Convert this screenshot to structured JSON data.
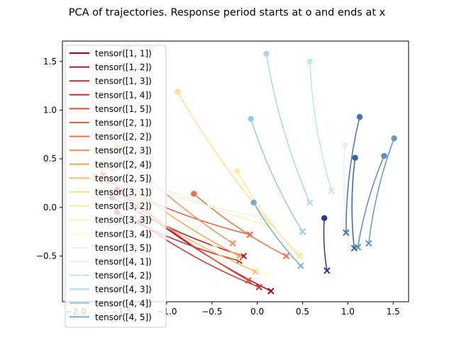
{
  "chart_data": {
    "type": "line",
    "title": "PCA of trajectories. Response period starts at o and ends at x",
    "xlabel": "",
    "ylabel": "",
    "xlim": [
      -2.15,
      1.67
    ],
    "ylim": [
      -0.97,
      1.71
    ],
    "xticks": [
      -2.0,
      -1.5,
      -1.0,
      -0.5,
      0.0,
      0.5,
      1.0,
      1.5
    ],
    "xtick_labels": [
      "−2.0",
      "−1.5",
      "−1.0",
      "−0.5",
      "0.0",
      "0.5",
      "1.0",
      "1.5"
    ],
    "yticks": [
      -0.5,
      0.0,
      0.5,
      1.0,
      1.5
    ],
    "ytick_labels": [
      "−0.5",
      "0.0",
      "0.5",
      "1.0",
      "1.5"
    ],
    "grid": false,
    "legend_position": "upper-left",
    "start_marker": "o",
    "end_marker": "x",
    "series": [
      {
        "name": "tensor([1, 1])",
        "color": "#a50026",
        "start": [
          -1.55,
          0.18
        ],
        "end": [
          0.15,
          -0.86
        ]
      },
      {
        "name": "tensor([1, 2])",
        "color": "#b8102a",
        "start": [
          -1.6,
          0.1
        ],
        "end": [
          -0.15,
          -0.5
        ]
      },
      {
        "name": "tensor([1, 3])",
        "color": "#c9262c",
        "start": [
          -1.55,
          -0.05
        ],
        "end": [
          -0.2,
          -0.55
        ]
      },
      {
        "name": "tensor([1, 4])",
        "color": "#d73027",
        "start": [
          -1.3,
          -0.15
        ],
        "end": [
          0.02,
          -0.82
        ]
      },
      {
        "name": "tensor([1, 5])",
        "color": "#e34a33",
        "start": [
          -1.7,
          0.35
        ],
        "end": [
          -0.1,
          -0.75
        ]
      },
      {
        "name": "tensor([2, 1])",
        "color": "#ea5f3c",
        "start": [
          -1.65,
          0.27
        ],
        "end": [
          -0.08,
          -0.28
        ]
      },
      {
        "name": "tensor([2, 2])",
        "color": "#f46d43",
        "start": [
          -0.7,
          0.14
        ],
        "end": [
          0.32,
          -0.5
        ]
      },
      {
        "name": "tensor([2, 3])",
        "color": "#f88d52",
        "start": [
          -1.55,
          0.62
        ],
        "end": [
          -0.27,
          -0.37
        ]
      },
      {
        "name": "tensor([2, 4])",
        "color": "#fba35e",
        "start": [
          -1.7,
          0.45
        ],
        "end": [
          -0.2,
          -0.5
        ]
      },
      {
        "name": "tensor([2, 5])",
        "color": "#fdb96b",
        "start": [
          -1.8,
          0.3
        ],
        "end": [
          -0.02,
          -0.66
        ]
      },
      {
        "name": "tensor([3, 1])",
        "color": "#fee08b",
        "start": [
          -0.88,
          1.19
        ],
        "end": [
          0.47,
          -0.5
        ]
      },
      {
        "name": "tensor([3, 2])",
        "color": "#fee999",
        "start": [
          -0.22,
          0.37
        ],
        "end": [
          0.46,
          -0.5
        ]
      },
      {
        "name": "tensor([3, 3])",
        "color": "#fef3b3",
        "start": [
          -1.8,
          0.55
        ],
        "end": [
          0.1,
          -0.18
        ]
      },
      {
        "name": "tensor([3, 4])",
        "color": "#fffbcb",
        "start": [
          -2.0,
          0.62
        ],
        "end": [
          0.1,
          -0.69
        ]
      },
      {
        "name": "tensor([3, 5])",
        "color": "#eaf6e3",
        "start": [
          -1.9,
          0.45
        ],
        "end": [
          0.05,
          -0.1
        ]
      },
      {
        "name": "tensor([4, 1])",
        "color": "#e0f3f8",
        "start": [
          0.97,
          0.64
        ],
        "end": [
          1.02,
          -0.42
        ]
      },
      {
        "name": "tensor([4, 2])",
        "color": "#c0e6ef",
        "start": [
          0.58,
          1.5
        ],
        "end": [
          0.82,
          0.17
        ]
      },
      {
        "name": "tensor([4, 3])",
        "color": "#abd9e9",
        "start": [
          0.1,
          1.58
        ],
        "end": [
          0.58,
          0.05
        ]
      },
      {
        "name": "tensor([4, 4])",
        "color": "#94cbe1",
        "start": [
          -0.07,
          0.91
        ],
        "end": [
          0.5,
          -0.25
        ]
      },
      {
        "name": "tensor([4, 5])",
        "color": "#74add1",
        "start": [
          -0.04,
          0.05
        ],
        "end": [
          0.48,
          -0.6
        ]
      },
      {
        "name": "",
        "color": "#6399c6",
        "start": [
          1.51,
          0.71
        ],
        "end": [
          1.23,
          -0.37
        ]
      },
      {
        "name": "",
        "color": "#5b8fc1",
        "start": [
          1.4,
          0.53
        ],
        "end": [
          1.11,
          -0.41
        ]
      },
      {
        "name": "",
        "color": "#4575b4",
        "start": [
          1.13,
          0.93
        ],
        "end": [
          0.98,
          -0.26
        ]
      },
      {
        "name": "",
        "color": "#3b62a6",
        "start": [
          1.08,
          0.51
        ],
        "end": [
          1.07,
          -0.42
        ]
      },
      {
        "name": "",
        "color": "#313695",
        "start": [
          0.74,
          -0.11
        ],
        "end": [
          0.77,
          -0.65
        ]
      }
    ]
  }
}
